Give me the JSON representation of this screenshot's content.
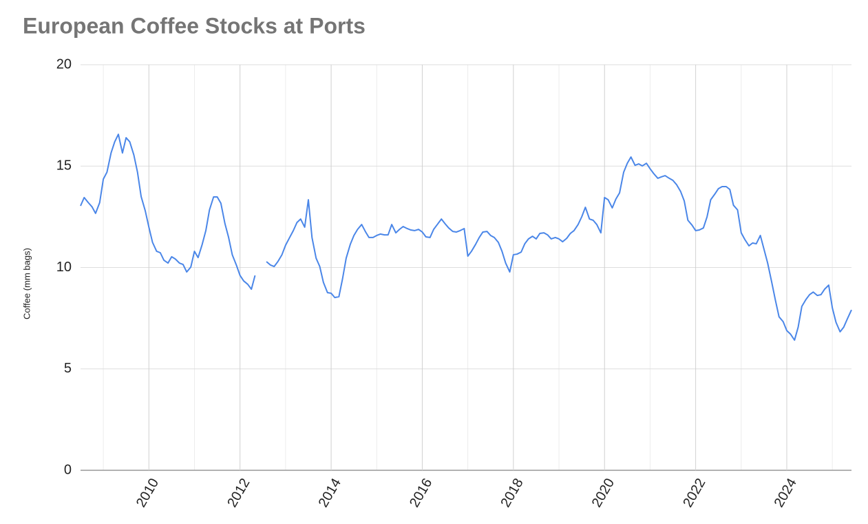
{
  "chart_data": {
    "type": "line",
    "title": "European Coffee Stocks at Ports",
    "y_label": "Coffee (mm bags)",
    "x": [
      2008.5,
      2008.58,
      2008.67,
      2008.75,
      2008.83,
      2008.92,
      2009,
      2009.08,
      2009.17,
      2009.25,
      2009.33,
      2009.42,
      2009.5,
      2009.58,
      2009.67,
      2009.75,
      2009.83,
      2009.92,
      2010,
      2010.08,
      2010.17,
      2010.25,
      2010.33,
      2010.42,
      2010.5,
      2010.58,
      2010.67,
      2010.75,
      2010.83,
      2010.92,
      2011,
      2011.08,
      2011.17,
      2011.25,
      2011.33,
      2011.42,
      2011.5,
      2011.58,
      2011.67,
      2011.75,
      2011.83,
      2011.92,
      2012,
      2012.08,
      2012.17,
      2012.25,
      2012.33,
      2012.42,
      2012.5,
      2012.58,
      2012.67,
      2012.75,
      2012.83,
      2012.92,
      2013,
      2013.08,
      2013.17,
      2013.25,
      2013.33,
      2013.42,
      2013.5,
      2013.58,
      2013.67,
      2013.75,
      2013.83,
      2013.92,
      2014,
      2014.08,
      2014.17,
      2014.25,
      2014.33,
      2014.42,
      2014.5,
      2014.58,
      2014.67,
      2014.75,
      2014.83,
      2014.92,
      2015,
      2015.08,
      2015.17,
      2015.25,
      2015.33,
      2015.42,
      2015.5,
      2015.58,
      2015.67,
      2015.75,
      2015.83,
      2015.92,
      2016,
      2016.08,
      2016.17,
      2016.25,
      2016.33,
      2016.42,
      2016.5,
      2016.58,
      2016.67,
      2016.75,
      2016.83,
      2016.92,
      2017,
      2017.08,
      2017.17,
      2017.25,
      2017.33,
      2017.42,
      2017.5,
      2017.58,
      2017.67,
      2017.75,
      2017.83,
      2017.92,
      2018,
      2018.08,
      2018.17,
      2018.25,
      2018.33,
      2018.42,
      2018.5,
      2018.58,
      2018.67,
      2018.75,
      2018.83,
      2018.92,
      2019,
      2019.08,
      2019.17,
      2019.25,
      2019.33,
      2019.42,
      2019.5,
      2019.58,
      2019.67,
      2019.75,
      2019.83,
      2019.92,
      2020,
      2020.08,
      2020.17,
      2020.25,
      2020.33,
      2020.42,
      2020.5,
      2020.58,
      2020.67,
      2020.75,
      2020.83,
      2020.92,
      2021,
      2021.08,
      2021.17,
      2021.25,
      2021.33,
      2021.42,
      2021.5,
      2021.58,
      2021.67,
      2021.75,
      2021.83,
      2021.92,
      2022,
      2022.08,
      2022.17,
      2022.25,
      2022.33,
      2022.42,
      2022.5,
      2022.58,
      2022.67,
      2022.75,
      2022.83,
      2022.92,
      2023,
      2023.08,
      2023.17,
      2023.25,
      2023.33,
      2023.42,
      2023.5,
      2023.58,
      2023.67,
      2023.75,
      2023.83,
      2023.92,
      2024,
      2024.08,
      2024.17,
      2024.25,
      2024.33,
      2024.42,
      2024.5,
      2024.58,
      2024.67,
      2024.75,
      2024.83,
      2024.92,
      2025,
      2025.08,
      2025.17,
      2025.25,
      2025.33,
      2025.42
    ],
    "series": [
      {
        "color": "#4a86e8",
        "values": [
          13.04,
          13.45,
          13.2,
          13.0,
          12.67,
          13.2,
          14.36,
          14.7,
          15.65,
          16.2,
          16.57,
          15.65,
          16.4,
          16.2,
          15.55,
          14.7,
          13.5,
          12.8,
          11.99,
          11.24,
          10.8,
          10.73,
          10.36,
          10.22,
          10.53,
          10.42,
          10.22,
          10.15,
          9.78,
          10.02,
          10.8,
          10.49,
          11.14,
          11.82,
          12.84,
          13.48,
          13.48,
          13.17,
          12.16,
          11.48,
          10.63,
          10.12,
          9.61,
          9.34,
          9.17,
          8.93,
          9.61,
          null,
          null,
          10.29,
          10.12,
          10.05,
          10.29,
          10.63,
          11.1,
          11.44,
          11.82,
          12.22,
          12.39,
          11.99,
          13.34,
          11.48,
          10.46,
          10.05,
          9.27,
          8.76,
          8.73,
          8.52,
          8.56,
          9.44,
          10.46,
          11.14,
          11.58,
          11.88,
          12.12,
          11.78,
          11.48,
          11.48,
          11.58,
          11.65,
          11.61,
          11.61,
          12.12,
          11.71,
          11.88,
          12.02,
          11.92,
          11.85,
          11.82,
          11.88,
          11.75,
          11.51,
          11.48,
          11.88,
          12.12,
          12.39,
          12.16,
          11.95,
          11.78,
          11.75,
          11.82,
          11.92,
          10.56,
          10.8,
          11.14,
          11.48,
          11.75,
          11.78,
          11.58,
          11.48,
          11.24,
          10.8,
          10.22,
          9.78,
          10.63,
          10.66,
          10.76,
          11.17,
          11.41,
          11.54,
          11.41,
          11.68,
          11.71,
          11.61,
          11.41,
          11.48,
          11.41,
          11.27,
          11.44,
          11.68,
          11.82,
          12.12,
          12.5,
          12.97,
          12.39,
          12.33,
          12.12,
          11.71,
          13.45,
          13.34,
          12.94,
          13.38,
          13.68,
          14.7,
          15.14,
          15.45,
          15.04,
          15.11,
          15.01,
          15.14,
          14.87,
          14.63,
          14.4,
          14.47,
          14.53,
          14.4,
          14.3,
          14.09,
          13.75,
          13.28,
          12.33,
          12.09,
          11.82,
          11.85,
          11.95,
          12.5,
          13.34,
          13.62,
          13.89,
          13.99,
          13.99,
          13.85,
          13.07,
          12.84,
          11.71,
          11.38,
          11.07,
          11.21,
          11.17,
          11.58,
          10.9,
          10.22,
          9.27,
          8.39,
          7.57,
          7.33,
          6.89,
          6.72,
          6.42,
          7.06,
          8.08,
          8.42,
          8.66,
          8.79,
          8.62,
          8.66,
          8.93,
          9.13,
          8.01,
          7.3,
          6.83,
          7.06,
          7.47,
          7.91
        ]
      }
    ],
    "xlim": [
      2008.5,
      2025.42
    ],
    "xticks": [
      2010,
      2012,
      2014,
      2016,
      2018,
      2020,
      2022,
      2024
    ],
    "x_minor_ticks": [
      2009,
      2011,
      2013,
      2015,
      2017,
      2019,
      2021,
      2023,
      2025
    ],
    "ylim": [
      0,
      20
    ],
    "yticks": [
      0,
      5,
      10,
      15,
      20
    ],
    "grid": true
  }
}
